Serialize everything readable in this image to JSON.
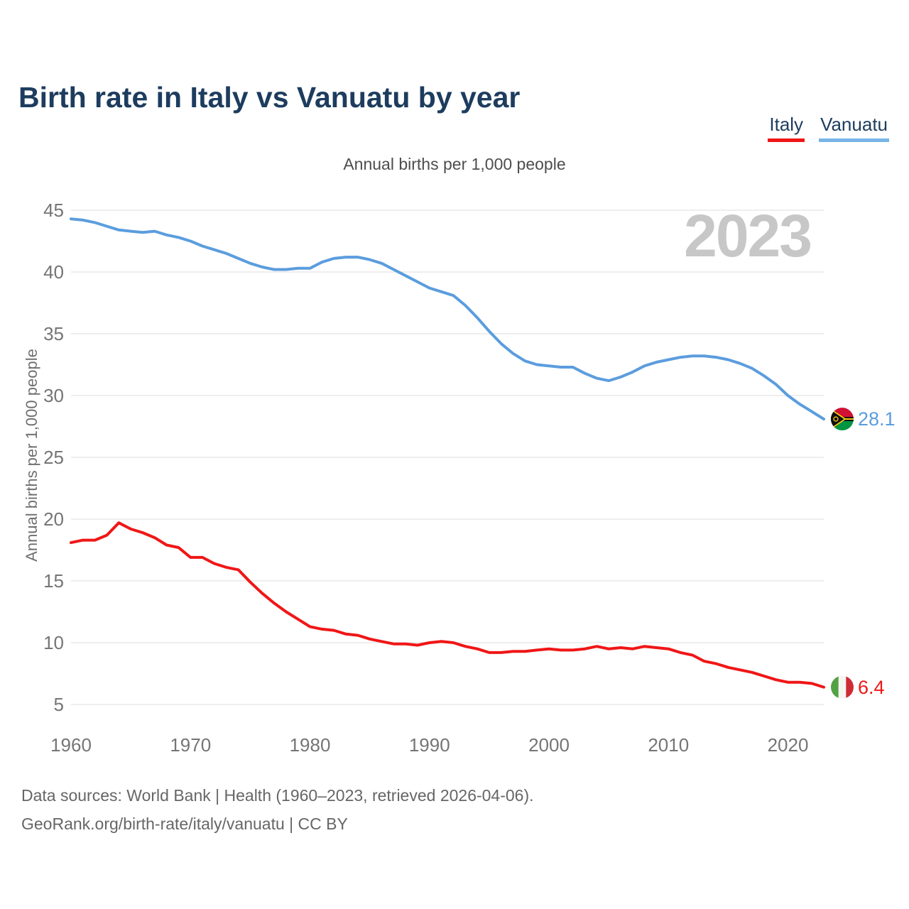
{
  "title": "Birth rate in Italy vs Vanuatu by year",
  "subtitle": "Annual births per 1,000 people",
  "watermark": "2023",
  "legend": [
    {
      "label": "Italy",
      "underline": "#f01616"
    },
    {
      "label": "Vanuatu",
      "underline": "#78b4e8"
    }
  ],
  "y_axis": {
    "title": "Annual births per 1,000 people",
    "ticks": [
      45,
      40,
      35,
      30,
      25,
      20,
      15,
      10,
      5
    ]
  },
  "x_axis": {
    "ticks": [
      1960,
      1970,
      1980,
      1990,
      2000,
      2010,
      2020
    ]
  },
  "end_labels": [
    {
      "series": "Vanuatu",
      "value": "28.1",
      "flag": "vanuatu-flag-icon"
    },
    {
      "series": "Italy",
      "value": "6.4",
      "flag": "italy-flag-icon"
    }
  ],
  "footer": {
    "line1": "Data sources: World Bank | Health (1960–2023, retrieved 2026-04-06).",
    "line2": "GeoRank.org/birth-rate/italy/vanuatu | CC BY"
  },
  "colors": {
    "title_navy": "#1d3c5e",
    "italy_red": "#f01616",
    "vanuatu_blue": "#5b9dde",
    "gridline": "#e8e8e8",
    "tick_gray": "#757575",
    "watermark_gray": "#c7c7c7",
    "vanuatu_flag": [
      "#D21034",
      "#009543",
      "#FDCE12",
      "#111111"
    ],
    "italy_flag": [
      "#54a143",
      "#f5f5f2",
      "#CE2B37"
    ]
  },
  "chart_data": {
    "type": "line",
    "title": "Birth rate in Italy vs Vanuatu by year",
    "xlabel": "",
    "ylabel": "Annual births per 1,000 people",
    "ylim": [
      5,
      45
    ],
    "xlim": [
      1960,
      2023
    ],
    "grid": true,
    "legend_position": "top-right",
    "x": [
      1960,
      1961,
      1962,
      1963,
      1964,
      1965,
      1966,
      1967,
      1968,
      1969,
      1970,
      1971,
      1972,
      1973,
      1974,
      1975,
      1976,
      1977,
      1978,
      1979,
      1980,
      1981,
      1982,
      1983,
      1984,
      1985,
      1986,
      1987,
      1988,
      1989,
      1990,
      1991,
      1992,
      1993,
      1994,
      1995,
      1996,
      1997,
      1998,
      1999,
      2000,
      2001,
      2002,
      2003,
      2004,
      2005,
      2006,
      2007,
      2008,
      2009,
      2010,
      2011,
      2012,
      2013,
      2014,
      2015,
      2016,
      2017,
      2018,
      2019,
      2020,
      2021,
      2022,
      2023
    ],
    "series": [
      {
        "name": "Vanuatu",
        "color": "#5b9dde",
        "values": [
          44.3,
          44.2,
          44.0,
          43.7,
          43.4,
          43.3,
          43.2,
          43.3,
          43.0,
          42.8,
          42.5,
          42.1,
          41.8,
          41.5,
          41.1,
          40.7,
          40.4,
          40.2,
          40.2,
          40.3,
          40.3,
          40.8,
          41.1,
          41.2,
          41.2,
          41.0,
          40.7,
          40.2,
          39.7,
          39.2,
          38.7,
          38.4,
          38.1,
          37.3,
          36.3,
          35.2,
          34.2,
          33.4,
          32.8,
          32.5,
          32.4,
          32.3,
          32.3,
          31.8,
          31.4,
          31.2,
          31.5,
          31.9,
          32.4,
          32.7,
          32.9,
          33.1,
          33.2,
          33.2,
          33.1,
          32.9,
          32.6,
          32.2,
          31.6,
          30.9,
          30.0,
          29.3,
          28.7,
          28.1
        ]
      },
      {
        "name": "Italy",
        "color": "#f01616",
        "values": [
          18.1,
          18.3,
          18.3,
          18.7,
          19.7,
          19.2,
          18.9,
          18.5,
          17.9,
          17.7,
          16.9,
          16.9,
          16.4,
          16.1,
          15.9,
          14.9,
          14.0,
          13.2,
          12.5,
          11.9,
          11.3,
          11.1,
          11.0,
          10.7,
          10.6,
          10.3,
          10.1,
          9.9,
          9.9,
          9.8,
          10.0,
          10.1,
          10.0,
          9.7,
          9.5,
          9.2,
          9.2,
          9.3,
          9.3,
          9.4,
          9.5,
          9.4,
          9.4,
          9.5,
          9.7,
          9.5,
          9.6,
          9.5,
          9.7,
          9.6,
          9.5,
          9.2,
          9.0,
          8.5,
          8.3,
          8.0,
          7.8,
          7.6,
          7.3,
          7.0,
          6.8,
          6.8,
          6.7,
          6.4
        ]
      }
    ]
  }
}
